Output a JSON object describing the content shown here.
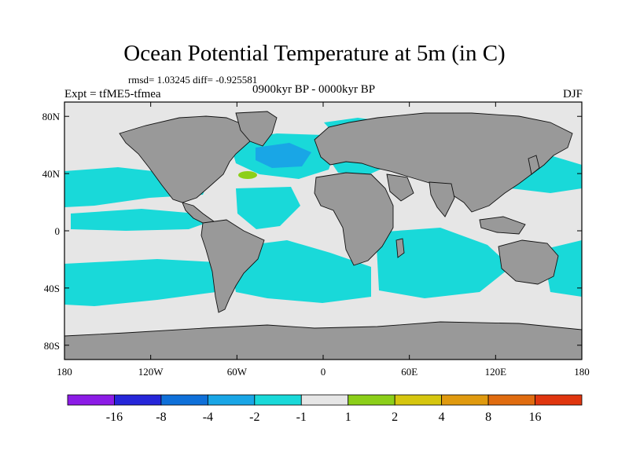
{
  "title": "Ocean Potential Temperature at 5m (in C)",
  "stats": "rmsd= 1.03245 diff= -0.925581",
  "experiment": "Expt = tfME5-tfmea",
  "period": "0900kyr BP - 0000kyr BP",
  "season": "DJF",
  "chart_data": {
    "type": "heatmap",
    "title": "Ocean Potential Temperature at 5m (in C)",
    "variable": "ocean potential temperature anomaly at 5 m",
    "units": "C",
    "x_range": [
      -180,
      180
    ],
    "y_range": [
      -90,
      90
    ],
    "x_ticks": [
      {
        "value": -180,
        "label": "180"
      },
      {
        "value": -120,
        "label": "120W"
      },
      {
        "value": -60,
        "label": "60W"
      },
      {
        "value": 0,
        "label": "0"
      },
      {
        "value": 60,
        "label": "60E"
      },
      {
        "value": 120,
        "label": "120E"
      },
      {
        "value": 180,
        "label": "180"
      }
    ],
    "y_ticks": [
      {
        "value": 80,
        "label": "80N"
      },
      {
        "value": 40,
        "label": "40N"
      },
      {
        "value": 0,
        "label": "0"
      },
      {
        "value": -40,
        "label": "40S"
      },
      {
        "value": -80,
        "label": "80S"
      }
    ],
    "colorbar": {
      "labels": [
        "-16",
        "-8",
        "-4",
        "-2",
        "-1",
        "1",
        "2",
        "4",
        "8",
        "16"
      ],
      "colors": [
        "#8c1ce6",
        "#2626d9",
        "#0f70d9",
        "#19a6e6",
        "#19d9d9",
        "#e6e6e6",
        "#8ccf19",
        "#d6c60f",
        "#e09a0f",
        "#e06c10",
        "#e0360f"
      ]
    },
    "colors": {
      "land": "#999999",
      "near_zero": "#e6e6e6",
      "cool_minus1_to_minus2": "#19d9d9",
      "cool_minus2_to_minus4": "#19a6e6",
      "warm_1_to_2": "#8ccf19"
    },
    "regions": [
      {
        "name": "Southern Ocean cooling band",
        "lat": [
          -55,
          -35
        ],
        "lon": [
          -180,
          180
        ],
        "range": [
          -2,
          -1
        ]
      },
      {
        "name": "North Atlantic subpolar cooling",
        "lat": [
          45,
          62
        ],
        "lon": [
          -55,
          -10
        ],
        "range": [
          -4,
          -2
        ]
      },
      {
        "name": "Subtropical North Pacific cooling",
        "lat": [
          20,
          42
        ],
        "lon": [
          -180,
          -115
        ],
        "range": [
          -2,
          -1
        ]
      },
      {
        "name": "North Atlantic warm patch",
        "lat": [
          38,
          42
        ],
        "lon": [
          -60,
          -50
        ],
        "range": [
          1,
          2
        ]
      },
      {
        "name": "Indian Ocean cooling",
        "lat": [
          -30,
          0
        ],
        "lon": [
          40,
          100
        ],
        "range": [
          -2,
          -1
        ]
      }
    ]
  }
}
